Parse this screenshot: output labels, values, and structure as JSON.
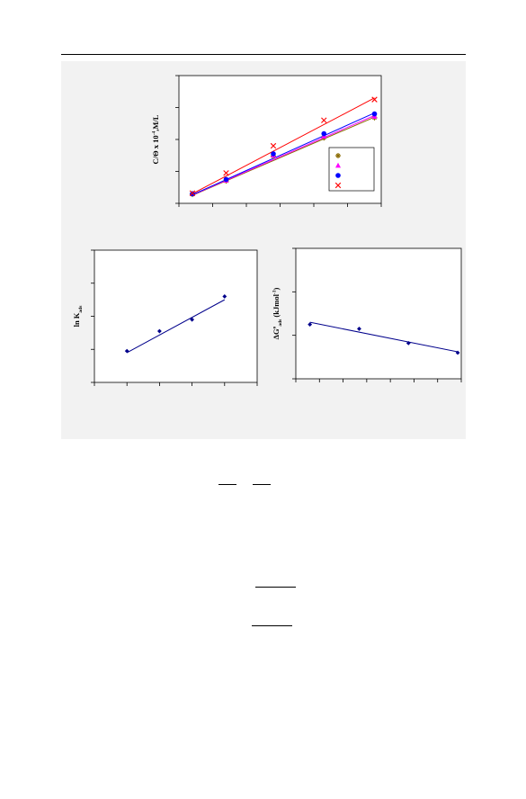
{
  "page": {
    "header_rule": true
  },
  "chart_data": [
    {
      "type": "scatter",
      "title": "",
      "xlabel": "",
      "ylabel_parts": {
        "pre": "C/Θ x 10",
        "sup": "-4",
        "post": ",M/L"
      },
      "xlim": [
        0,
        6
      ],
      "ylim": [
        0,
        4
      ],
      "grid": false,
      "legend_placement": "bottom-right",
      "x": [
        0.4,
        1.4,
        2.8,
        4.3,
        5.8
      ],
      "series": [
        {
          "marker": "star",
          "color": "#8a6a00",
          "values": [
            0.28,
            0.7,
            1.48,
            2.05,
            2.68
          ],
          "fit": [
            0.25,
            2.7
          ]
        },
        {
          "marker": "triangle",
          "color": "#ff00ff",
          "values": [
            0.3,
            0.72,
            1.5,
            2.1,
            2.72
          ],
          "fit": [
            0.26,
            2.75
          ]
        },
        {
          "marker": "circle",
          "color": "#0000ff",
          "values": [
            0.3,
            0.75,
            1.55,
            2.18,
            2.8
          ],
          "fit": [
            0.27,
            2.83
          ]
        },
        {
          "marker": "cross",
          "color": "#ff0000",
          "values": [
            0.32,
            0.95,
            1.8,
            2.6,
            3.25
          ],
          "fit": [
            0.3,
            3.3
          ]
        }
      ]
    },
    {
      "type": "scatter",
      "title": "",
      "xlabel": "",
      "ylabel_parts": {
        "pre": "ln K",
        "sub": "ads"
      },
      "xlim": [
        0,
        5
      ],
      "ylim": [
        0,
        4
      ],
      "grid": false,
      "x": [
        1,
        2,
        3,
        4
      ],
      "series": [
        {
          "marker": "diamond",
          "color": "#00008b",
          "values": [
            0.95,
            1.55,
            1.9,
            2.6
          ],
          "fit": [
            0.9,
            2.5
          ]
        }
      ]
    },
    {
      "type": "scatter",
      "title": "",
      "xlabel": "",
      "ylabel_parts": {
        "pre": "ΔG",
        "sup": "o",
        "sub": "ads",
        "post": " (kJmol",
        "sup2": "-1",
        "tail": ")"
      },
      "xlim": [
        0,
        4.7
      ],
      "ylim": [
        -3,
        0
      ],
      "grid": false,
      "x": [
        0.4,
        1.8,
        3.2,
        4.6
      ],
      "series": [
        {
          "marker": "diamond",
          "color": "#00008b",
          "values": [
            -1.75,
            -1.85,
            -2.18,
            -2.4
          ],
          "fit": [
            -1.7,
            -2.38
          ]
        }
      ]
    }
  ]
}
